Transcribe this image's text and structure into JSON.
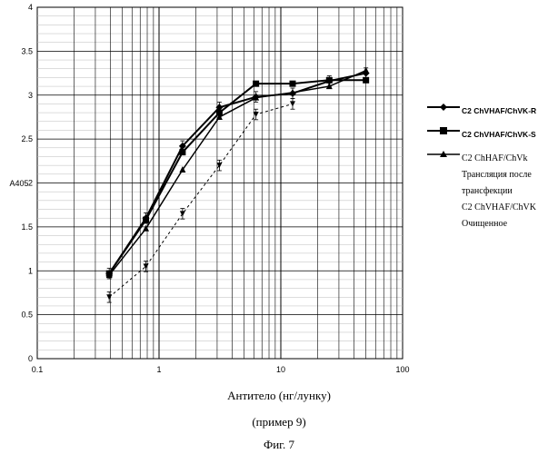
{
  "chart_data": {
    "type": "line",
    "xscale": "log",
    "xlim": [
      0.1,
      100
    ],
    "ylim": [
      0,
      4
    ],
    "x_ticks": [
      "0.1",
      "1",
      "10",
      "100"
    ],
    "y_ticks": [
      "0",
      "0.5",
      "1",
      "1.5",
      "2",
      "2.5",
      "3",
      "3.5",
      "4"
    ],
    "ylabel": "A405",
    "xlabel": "Антитело (нг/лунку)",
    "grid": true,
    "legend_position": "right",
    "series": [
      {
        "name": "C2 ChVHAF/ChVK-R",
        "marker": "diamond",
        "style": "solid",
        "x": [
          0.39,
          0.78,
          1.56,
          3.13,
          6.25,
          12.5,
          25,
          50
        ],
        "y": [
          0.97,
          1.6,
          2.42,
          2.86,
          2.98,
          3.02,
          3.16,
          3.25
        ]
      },
      {
        "name": "C2 ChVHAF/ChVK-S",
        "marker": "square",
        "style": "solid",
        "x": [
          0.39,
          0.78,
          1.56,
          3.13,
          6.25,
          12.5,
          25,
          50
        ],
        "y": [
          0.97,
          1.58,
          2.35,
          2.8,
          3.13,
          3.13,
          3.17,
          3.17
        ]
      },
      {
        "name": "C2 ChHAF/ChVk\nТрансляция после\nтрансфекции\nC2 ChVHAF/ChVK\nОчищенное",
        "marker": "triangle",
        "style": "solid",
        "x": [
          0.39,
          0.78,
          1.56,
          3.13,
          6.25,
          12.5,
          25,
          50
        ],
        "y": [
          0.95,
          1.48,
          2.15,
          2.75,
          2.97,
          3.03,
          3.1,
          3.28
        ]
      },
      {
        "name": "",
        "marker": "triangle-down",
        "style": "dashed",
        "x": [
          0.39,
          0.78,
          1.56,
          3.13,
          6.25,
          12.5
        ],
        "y": [
          0.7,
          1.05,
          1.65,
          2.2,
          2.78,
          2.9
        ]
      }
    ]
  },
  "captions": {
    "axis_title": "Антитело (нг/лунку)",
    "example": "(пример 9)",
    "figure": "Фиг. 7"
  },
  "legend_items": [
    {
      "label": "C2 ChVHAF/ChVK-R",
      "marker": "diamond"
    },
    {
      "label": "C2 ChVHAF/ChVK-S",
      "marker": "square"
    },
    {
      "label": "C2 ChHAF/ChVk\nТрансляция после\nтрансфекции\nC2 ChVHAF/ChVK\nОчищенное",
      "marker": "triangle"
    }
  ]
}
